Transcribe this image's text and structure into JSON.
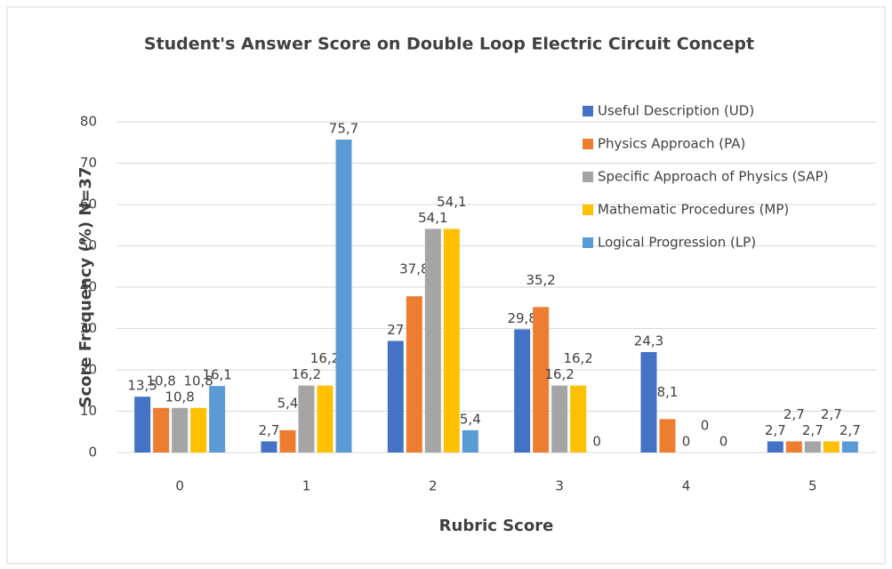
{
  "chart_data": {
    "type": "bar",
    "title": "Student's Answer Score on Double Loop Electric Circuit Concept",
    "xlabel": "Rubric Score",
    "ylabel": "Score Frequency (%)  N=37",
    "categories": [
      "0",
      "1",
      "2",
      "3",
      "4",
      "5"
    ],
    "series": [
      {
        "name": "Useful Description (UD)",
        "color": "#4472c4",
        "values": [
          13.5,
          2.7,
          27,
          29.8,
          24.3,
          2.7
        ],
        "value_labels": [
          "13,5",
          "2,7",
          "27",
          "29,8",
          "24,3",
          "2,7"
        ]
      },
      {
        "name": "Physics Approach (PA)",
        "color": "#ed7d31",
        "values": [
          10.8,
          5.4,
          37.8,
          35.2,
          8.1,
          2.7
        ],
        "value_labels": [
          "10,8",
          "5,4",
          "37,8",
          "35,2",
          "8,1",
          "2,7"
        ]
      },
      {
        "name": "Specific Approach of Physics (SAP)",
        "color": "#a5a5a5",
        "values": [
          10.8,
          16.2,
          54.1,
          16.2,
          0,
          2.7
        ],
        "value_labels": [
          "10,8",
          "16,2",
          "54,1",
          "16,2",
          "0",
          "2,7"
        ]
      },
      {
        "name": "Mathematic Procedures (MP)",
        "color": "#ffc000",
        "values": [
          10.8,
          16.2,
          54.1,
          16.2,
          0,
          2.7
        ],
        "value_labels": [
          "10,8",
          "16,2",
          "54,1",
          "16,2",
          "0",
          "2,7"
        ]
      },
      {
        "name": "Logical Progression (LP)",
        "color": "#5b9bd5",
        "values": [
          16.1,
          75.7,
          5.4,
          0,
          0,
          2.7
        ],
        "value_labels": [
          "16,1",
          "75,7",
          "5,4",
          "0",
          "0",
          "2,7"
        ]
      }
    ],
    "ylim": [
      0,
      80
    ],
    "yticks": [
      0,
      10,
      20,
      30,
      40,
      50,
      60,
      70,
      80
    ],
    "grid": true,
    "legend": "upper right"
  }
}
